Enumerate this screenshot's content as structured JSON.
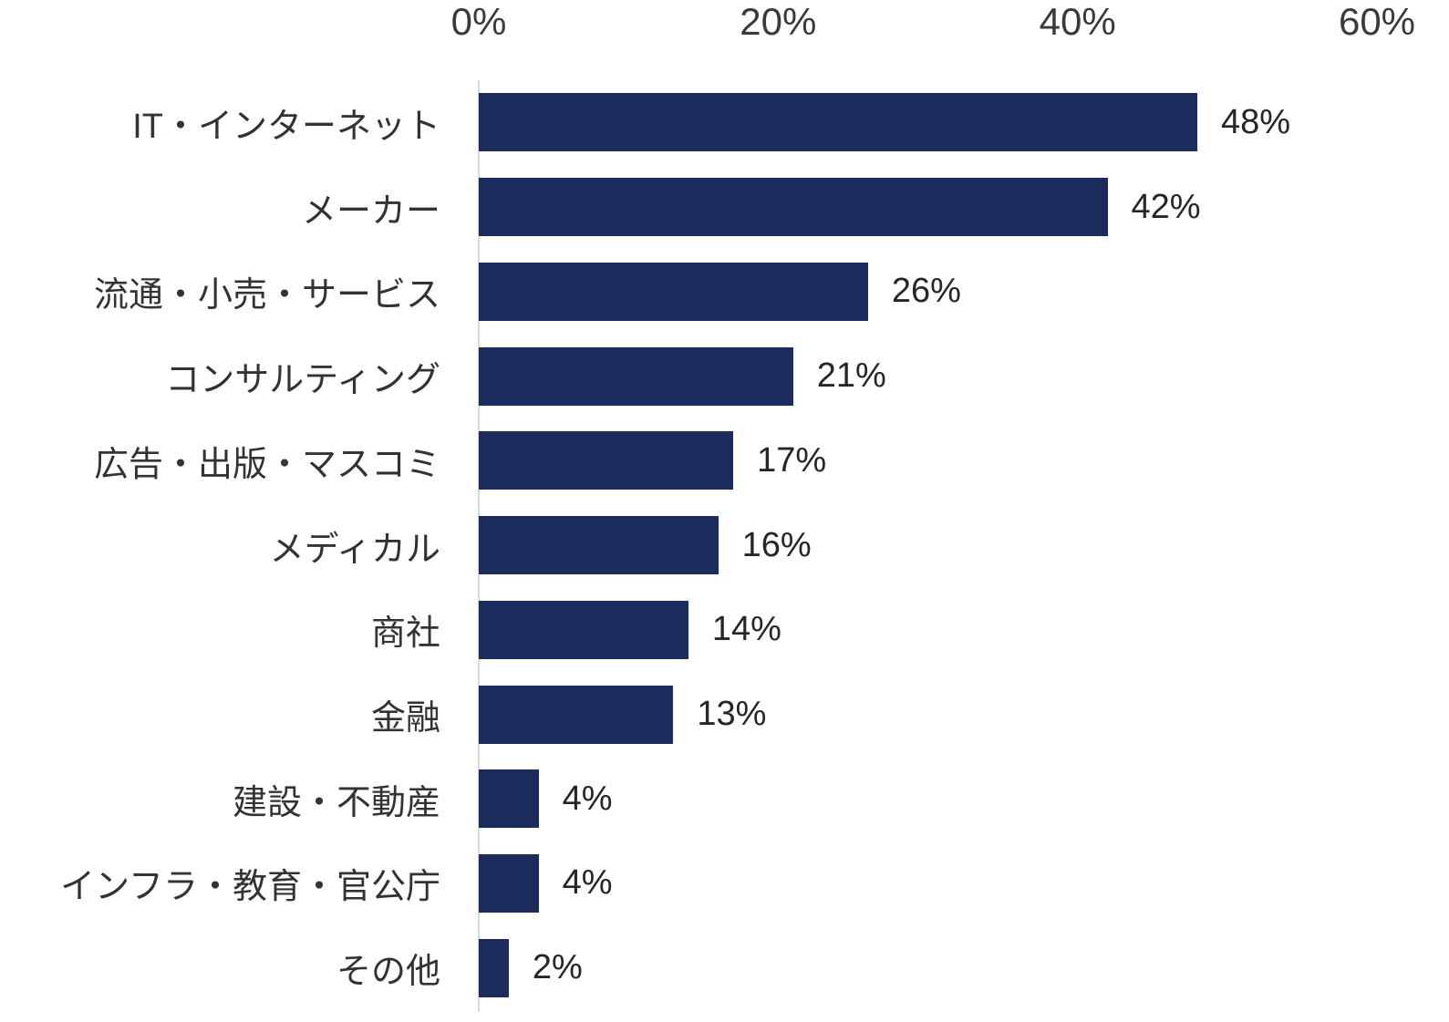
{
  "chart_data": {
    "type": "bar",
    "orientation": "horizontal",
    "categories": [
      "IT・インターネット",
      "メーカー",
      "流通・小売・サービス",
      "コンサルティング",
      "広告・出版・マスコミ",
      "メディカル",
      "商社",
      "金融",
      "建設・不動産",
      "インフラ・教育・官公庁",
      "その他"
    ],
    "values": [
      48,
      42,
      26,
      21,
      17,
      16,
      14,
      13,
      4,
      4,
      2
    ],
    "value_labels": [
      "48%",
      "42%",
      "26%",
      "21%",
      "17%",
      "16%",
      "14%",
      "13%",
      "4%",
      "4%",
      "2%"
    ],
    "x_ticks": [
      "0%",
      "20%",
      "40%",
      "60%"
    ],
    "xlim": [
      0,
      60
    ],
    "title": "",
    "xlabel": "",
    "ylabel": "",
    "grid": false,
    "legend": false,
    "bar_color": "#1a2b5c",
    "axis_line_color": "#d9d9d9",
    "text_color": "#333333"
  }
}
